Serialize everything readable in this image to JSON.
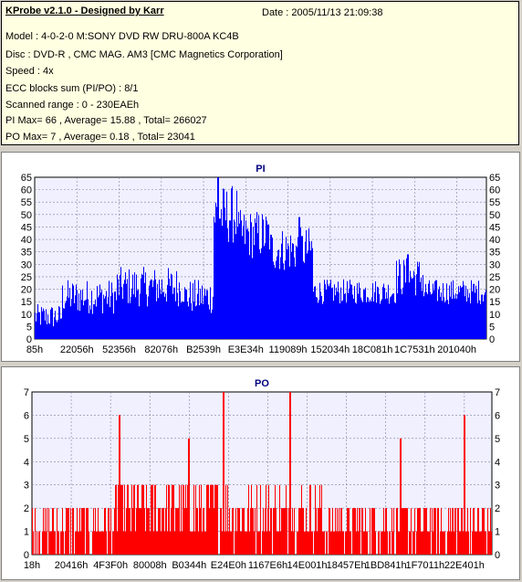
{
  "header": {
    "title": "KProbe v2.1.0 - Designed by Karr",
    "date": "Date : 2005/11/13 21:09:38",
    "lines": [
      "Model : 4-0-2-0 M:SONY    DVD RW DRU-800A  KC4B",
      "Disc : DVD-R , CMC MAG. AM3 [CMC Magnetics Corporation]",
      "Speed : 4x",
      "ECC blocks sum (PI/PO) : 8/1",
      "Scanned range : 0 - 230EAEh",
      "PI Max= 66 , Average= 15.88 , Total= 266027",
      "PO Max= 7 , Average= 0.18 , Total= 23041"
    ]
  },
  "colors": {
    "pi": "#0000ff",
    "po": "#ff0000",
    "plot_bg": "#f0f0ff",
    "grid": "#8080a0"
  },
  "chart_data": [
    {
      "type": "bar",
      "title": "PI",
      "ylim": [
        0,
        65
      ],
      "yticks": [
        0,
        5,
        10,
        15,
        20,
        25,
        30,
        35,
        40,
        45,
        50,
        55,
        60,
        65
      ],
      "xtick_labels": [
        "85h",
        "22056h",
        "52356h",
        "82076h",
        "B2539h",
        "E3E34h",
        "119089h",
        "152034h",
        "18C081h",
        "1C7531h",
        "201040h"
      ],
      "grid": true,
      "segments": [
        {
          "from": 0.0,
          "to": 0.06,
          "mean": 9,
          "spread": 5
        },
        {
          "from": 0.06,
          "to": 0.18,
          "mean": 17,
          "spread": 7
        },
        {
          "from": 0.18,
          "to": 0.33,
          "mean": 21,
          "spread": 8
        },
        {
          "from": 0.33,
          "to": 0.395,
          "mean": 17,
          "spread": 7
        },
        {
          "from": 0.395,
          "to": 0.45,
          "mean": 50,
          "spread": 12
        },
        {
          "from": 0.45,
          "to": 0.52,
          "mean": 42,
          "spread": 10
        },
        {
          "from": 0.52,
          "to": 0.615,
          "mean": 36,
          "spread": 9
        },
        {
          "from": 0.615,
          "to": 0.8,
          "mean": 19,
          "spread": 5
        },
        {
          "from": 0.8,
          "to": 0.86,
          "mean": 25,
          "spread": 8
        },
        {
          "from": 0.86,
          "to": 1.0,
          "mean": 19,
          "spread": 5
        }
      ],
      "peaks": [
        {
          "at": 0.405,
          "value": 66
        },
        {
          "at": 0.825,
          "value": 34
        },
        {
          "at": 0.585,
          "value": 49
        }
      ]
    },
    {
      "type": "bar",
      "title": "PO",
      "ylim": [
        0,
        7
      ],
      "yticks": [
        0,
        1,
        2,
        3,
        4,
        5,
        6,
        7
      ],
      "xtick_labels": [
        "18h",
        "20416h",
        "4F3F0h",
        "80008h",
        "B0344h",
        "E24E0h",
        "1167E6h",
        "14E001h",
        "18457Eh",
        "1BD841h",
        "1F7011h",
        "22E401h"
      ],
      "grid": true,
      "segments": [
        {
          "from": 0.0,
          "to": 0.18,
          "mean": 1.2,
          "spread": 1.2
        },
        {
          "from": 0.18,
          "to": 0.4,
          "mean": 2.0,
          "spread": 1.5
        },
        {
          "from": 0.4,
          "to": 0.63,
          "mean": 1.8,
          "spread": 1.4
        },
        {
          "from": 0.63,
          "to": 1.0,
          "mean": 1.3,
          "spread": 1.2
        }
      ],
      "peaks": [
        {
          "at": 0.19,
          "value": 6
        },
        {
          "at": 0.415,
          "value": 7
        },
        {
          "at": 0.56,
          "value": 7
        },
        {
          "at": 0.94,
          "value": 6
        },
        {
          "at": 0.34,
          "value": 5
        },
        {
          "at": 0.8,
          "value": 5
        }
      ]
    }
  ]
}
